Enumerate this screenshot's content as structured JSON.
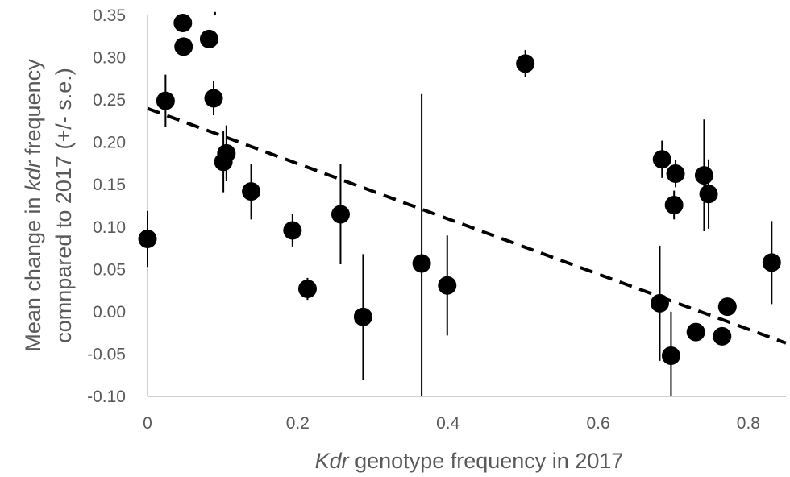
{
  "chart_data": {
    "type": "scatter",
    "xlabel_parts": [
      {
        "text": "Kdr",
        "italic": true
      },
      {
        "text": " genotype frequency in 2017",
        "italic": false
      }
    ],
    "ylabel_line1_parts": [
      {
        "text": "Mean change in ",
        "italic": false
      },
      {
        "text": "kdr",
        "italic": true
      },
      {
        "text": " frequency",
        "italic": false
      }
    ],
    "ylabel_line2_parts": [
      {
        "text": "comnpared to 2017 (+/- s.e.)",
        "italic": false
      }
    ],
    "xlim": [
      0,
      0.85
    ],
    "ylim": [
      -0.1,
      0.35
    ],
    "x_ticks": [
      0,
      0.2,
      0.4,
      0.6,
      0.8
    ],
    "x_tick_labels": [
      "0",
      "0.2",
      "0.4",
      "0.6",
      "0.8"
    ],
    "y_ticks": [
      -0.1,
      -0.05,
      0.0,
      0.05,
      0.1,
      0.15,
      0.2,
      0.25,
      0.3,
      0.35
    ],
    "y_tick_labels": [
      "-0.10",
      "-0.05",
      "0.00",
      "0.05",
      "0.10",
      "0.15",
      "0.20",
      "0.25",
      "0.30",
      "0.35"
    ],
    "grid": false,
    "legend": "none",
    "marker_color": "#000000",
    "trendline": {
      "style": "dashed",
      "color": "#000000",
      "x": [
        0,
        0.85
      ],
      "y": [
        0.24,
        -0.037
      ]
    },
    "points": [
      {
        "x": 0.0,
        "y": 0.086,
        "err": 0.033
      },
      {
        "x": 0.024,
        "y": 0.249,
        "err": 0.031
      },
      {
        "x": 0.047,
        "y": 0.341,
        "err": 0.0
      },
      {
        "x": 0.048,
        "y": 0.313,
        "err": 0.0
      },
      {
        "x": 0.082,
        "y": 0.322,
        "err": 0.0
      },
      {
        "x": 0.088,
        "y": 0.252,
        "err": 0.02
      },
      {
        "x": 0.09,
        "y": 0.352,
        "err": 0.0
      },
      {
        "x": 0.101,
        "y": 0.177,
        "err": 0.036
      },
      {
        "x": 0.105,
        "y": 0.187,
        "err": 0.033
      },
      {
        "x": 0.138,
        "y": 0.142,
        "err": 0.033
      },
      {
        "x": 0.193,
        "y": 0.096,
        "err": 0.019
      },
      {
        "x": 0.213,
        "y": 0.027,
        "err": 0.013
      },
      {
        "x": 0.257,
        "y": 0.115,
        "err": 0.059
      },
      {
        "x": 0.287,
        "y": -0.006,
        "err": 0.074
      },
      {
        "x": 0.365,
        "y": 0.057,
        "err": 0.2
      },
      {
        "x": 0.399,
        "y": 0.031,
        "err": 0.059
      },
      {
        "x": 0.503,
        "y": 0.293,
        "err": 0.016
      },
      {
        "x": 0.682,
        "y": 0.01,
        "err": 0.068
      },
      {
        "x": 0.685,
        "y": 0.18,
        "err": 0.022
      },
      {
        "x": 0.697,
        "y": -0.052,
        "err": 0.052
      },
      {
        "x": 0.701,
        "y": 0.126,
        "err": 0.017
      },
      {
        "x": 0.703,
        "y": 0.163,
        "err": 0.016
      },
      {
        "x": 0.73,
        "y": -0.024,
        "err": 0.0
      },
      {
        "x": 0.741,
        "y": 0.161,
        "err": 0.066
      },
      {
        "x": 0.747,
        "y": 0.139,
        "err": 0.041
      },
      {
        "x": 0.765,
        "y": -0.029,
        "err": 0.0
      },
      {
        "x": 0.772,
        "y": 0.006,
        "err": 0.0
      },
      {
        "x": 0.831,
        "y": 0.058,
        "err": 0.049
      }
    ]
  }
}
